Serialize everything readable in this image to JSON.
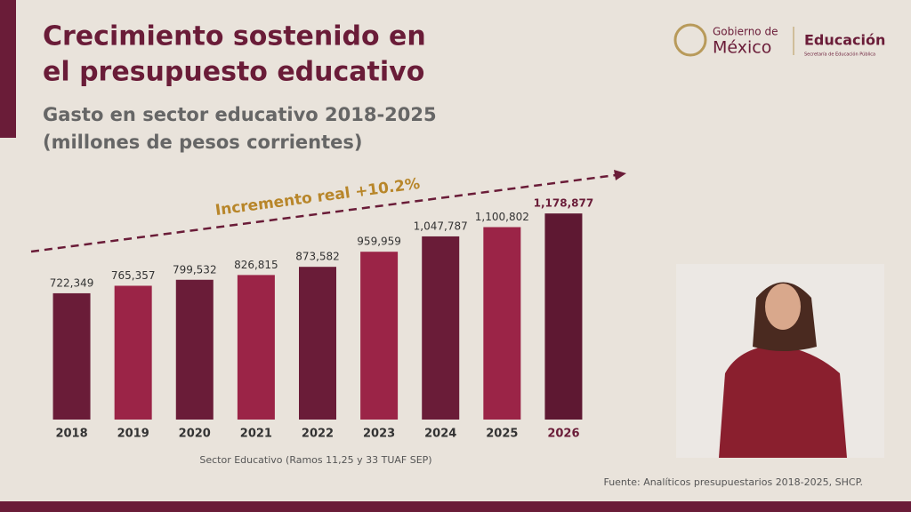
{
  "header": {
    "gov_line1": "Gobierno de",
    "gov_line2": "México",
    "dept": "Educación",
    "dept_sub": "Secretaría de Educación Pública"
  },
  "chart_data": {
    "type": "bar",
    "title": [
      "Crecimiento sostenido en",
      "el presupuesto educativo"
    ],
    "subtitle": [
      "Gasto en sector educativo 2018-2025",
      "(millones de pesos corrientes)"
    ],
    "annotation": "Incremento real +10.2%",
    "x_label": "Sector Educativo (Ramos 11,25 y 33 TUAF SEP)",
    "source": "Fuente: Analíticos presupuestarios 2018-2025, SHCP.",
    "categories": [
      "2018",
      "2019",
      "2020",
      "2021",
      "2022",
      "2023",
      "2024",
      "2025",
      "2026"
    ],
    "values": [
      722349,
      765357,
      799532,
      826815,
      873582,
      959959,
      1047787,
      1100802,
      1178877
    ],
    "value_labels": [
      "722,349",
      "765,357",
      "799,532",
      "826,815",
      "873,582",
      "959,959",
      "1,047,787",
      "1,100,802",
      "1,178,877"
    ],
    "colors": [
      "#6a1c38",
      "#9b2447",
      "#6a1c38",
      "#9b2447",
      "#6a1c38",
      "#9b2447",
      "#6a1c38",
      "#9b2447",
      "#5e1832"
    ],
    "emphasis_index": 8,
    "ylim": [
      0,
      1200000
    ]
  }
}
